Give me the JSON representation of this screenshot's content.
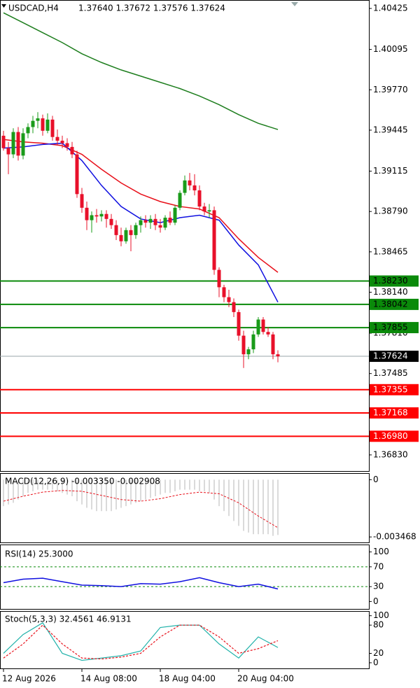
{
  "chart_data": [
    {
      "type": "candlestick",
      "title": "USDCAD,H4",
      "subtitle": "1.37640 1.37672 1.37576 1.37624",
      "categories": [
        "12 Aug 2026",
        null,
        null,
        null,
        null,
        null,
        null,
        null,
        null,
        null,
        null,
        null,
        null,
        null,
        null,
        null,
        "14 Aug 08:00",
        null,
        null,
        null,
        null,
        null,
        null,
        null,
        null,
        null,
        null,
        null,
        null,
        null,
        null,
        null,
        "18 Aug 04:00",
        null,
        null,
        null,
        null,
        null,
        null,
        null,
        null,
        null,
        null,
        null,
        null,
        null,
        null,
        null,
        "20 Aug 04:00",
        null,
        null,
        null,
        null,
        null,
        null,
        null,
        null
      ],
      "open": [
        1.394,
        1.393,
        1.3925,
        1.3943,
        1.3924,
        1.3942,
        1.3947,
        1.3952,
        1.3954,
        1.3944,
        1.3953,
        1.3939,
        1.3936,
        1.3934,
        1.3931,
        1.3925,
        1.3893,
        1.3882,
        1.3872,
        1.3876,
        1.3875,
        1.3877,
        1.3873,
        1.3868,
        1.386,
        1.3855,
        1.3864,
        1.386,
        1.3868,
        1.3872,
        1.387,
        1.3873,
        1.3868,
        1.3866,
        1.3874,
        1.387,
        1.3882,
        1.3894,
        1.3904,
        1.39,
        1.3896,
        1.3883,
        1.3879,
        1.388,
        1.3832,
        1.3818,
        1.381,
        1.3806,
        1.3798,
        1.3779,
        1.3764,
        1.3768,
        1.378,
        1.3792,
        1.3782,
        1.378,
        1.3764
      ],
      "high": [
        1.3944,
        1.3935,
        1.3946,
        1.3947,
        1.3946,
        1.395,
        1.3956,
        1.3959,
        1.3957,
        1.3958,
        1.3956,
        1.3945,
        1.394,
        1.3938,
        1.3935,
        1.3928,
        1.3898,
        1.3887,
        1.3879,
        1.3881,
        1.388,
        1.388,
        1.3877,
        1.3872,
        1.3866,
        1.3866,
        1.3868,
        1.387,
        1.3875,
        1.3876,
        1.3876,
        1.3877,
        1.3873,
        1.3876,
        1.3879,
        1.3884,
        1.3896,
        1.3908,
        1.391,
        1.3909,
        1.39,
        1.3886,
        1.3885,
        1.3883,
        1.3834,
        1.382,
        1.3816,
        1.3809,
        1.38,
        1.3783,
        1.377,
        1.3783,
        1.3794,
        1.3794,
        1.3786,
        1.3782,
        1.37672
      ],
      "low": [
        1.3928,
        1.3909,
        1.3922,
        1.392,
        1.3921,
        1.3938,
        1.3942,
        1.3946,
        1.394,
        1.3942,
        1.3936,
        1.3933,
        1.393,
        1.3928,
        1.3922,
        1.389,
        1.3878,
        1.3864,
        1.3862,
        1.387,
        1.3871,
        1.3866,
        1.3865,
        1.3856,
        1.3851,
        1.3853,
        1.3847,
        1.3857,
        1.3862,
        1.3866,
        1.3865,
        1.3864,
        1.3862,
        1.3864,
        1.3868,
        1.3868,
        1.388,
        1.3892,
        1.3896,
        1.3892,
        1.388,
        1.3876,
        1.3874,
        1.3828,
        1.381,
        1.3806,
        1.3802,
        1.3794,
        1.3775,
        1.3753,
        1.376,
        1.3765,
        1.3778,
        1.378,
        1.3778,
        1.376,
        1.37576
      ],
      "close": [
        1.393,
        1.3925,
        1.3943,
        1.3924,
        1.3942,
        1.3947,
        1.3952,
        1.3954,
        1.3944,
        1.3953,
        1.3939,
        1.3936,
        1.3934,
        1.3931,
        1.3925,
        1.3893,
        1.3882,
        1.3872,
        1.3876,
        1.3875,
        1.3877,
        1.3873,
        1.3868,
        1.386,
        1.3855,
        1.3864,
        1.386,
        1.3868,
        1.3872,
        1.387,
        1.3873,
        1.3868,
        1.3866,
        1.3874,
        1.387,
        1.3882,
        1.3894,
        1.3904,
        1.39,
        1.3896,
        1.3883,
        1.3879,
        1.388,
        1.3832,
        1.3818,
        1.381,
        1.3806,
        1.3798,
        1.3779,
        1.3764,
        1.3768,
        1.378,
        1.3792,
        1.3782,
        1.378,
        1.3764,
        1.37624
      ],
      "up_color": "#1a9b1a",
      "down_color": "#e8102a",
      "lines": [
        {
          "color": "#1e7e1e",
          "x": [
            0,
            4,
            8,
            12,
            16,
            20,
            24,
            28,
            32,
            36,
            40,
            44,
            48,
            52,
            56
          ],
          "values": [
            1.4039,
            1.4031,
            1.4023,
            1.4015,
            1.4006,
            1.3999,
            1.3993,
            1.3988,
            1.3983,
            1.3978,
            1.3972,
            1.3965,
            1.3957,
            1.395,
            1.3945
          ]
        },
        {
          "color": "#e8101a",
          "x": [
            0,
            4,
            8,
            12,
            16,
            20,
            24,
            28,
            32,
            36,
            40,
            44,
            48,
            52,
            56
          ],
          "values": [
            1.3937,
            1.3935,
            1.3934,
            1.3932,
            1.3925,
            1.3913,
            1.3902,
            1.3893,
            1.3887,
            1.3883,
            1.3881,
            1.3874,
            1.3857,
            1.3842,
            1.383
          ]
        },
        {
          "color": "#1010e0",
          "x": [
            0,
            4,
            8,
            12,
            16,
            20,
            24,
            28,
            32,
            36,
            40,
            44,
            48,
            52,
            56
          ],
          "values": [
            1.393,
            1.3931,
            1.3933,
            1.3934,
            1.392,
            1.39,
            1.3883,
            1.3873,
            1.387,
            1.3874,
            1.3876,
            1.3872,
            1.3852,
            1.3836,
            1.3806
          ]
        }
      ],
      "levels": [
        {
          "value": 1.3823,
          "label": "1.38230",
          "color": "#0a8a0a"
        },
        {
          "value": 1.38042,
          "color": "#0a8a0a"
        },
        {
          "value": 1.37855,
          "color": "#0a8a0a"
        },
        {
          "value": 1.37355,
          "color": "#ff0000"
        },
        {
          "value": 1.37168,
          "color": "#ff0000"
        },
        {
          "value": 1.3698,
          "label": "1.36980",
          "color": "#ff0000"
        }
      ],
      "bid": 1.37624,
      "ylim": [
        1.367,
        1.40493
      ],
      "yticks": [
        1.40425,
        1.40095,
        {
          "value": 1.3977,
          "label": "1.39770"
        },
        1.39445,
        1.39115,
        {
          "value": 1.3879,
          "label": "1.38790"
        },
        1.38465,
        {
          "value": 1.3814,
          "label": "1.38140"
        },
        {
          "value": 1.3781,
          "label": "1.37810"
        },
        1.37485,
        {
          "value": 1.3683,
          "label": "1.36830"
        }
      ]
    },
    {
      "type": "macd",
      "title": "MACD(12,26,9) -0.003350 -0.002908",
      "values": [
        -0.0016,
        -0.0015,
        -0.0014,
        -0.0012,
        -0.001,
        -0.0008,
        -0.0007,
        -0.0006,
        -0.0006,
        -0.0006,
        -0.0006,
        -0.0007,
        -0.0008,
        -0.0009,
        -0.001,
        -0.0013,
        -0.0015,
        -0.0017,
        -0.0018,
        -0.0019,
        -0.0019,
        -0.0019,
        -0.0019,
        -0.0018,
        -0.0017,
        -0.0016,
        -0.0015,
        -0.0014,
        -0.0013,
        -0.0012,
        -0.0011,
        -0.001,
        -0.0009,
        -0.0008,
        -0.0008,
        -0.0007,
        -0.0006,
        -0.0006,
        -0.0006,
        -0.0006,
        -0.0007,
        -0.0007,
        -0.0008,
        -0.0012,
        -0.0016,
        -0.0019,
        -0.0022,
        -0.0025,
        -0.0028,
        -0.0031,
        -0.0032,
        -0.0033,
        -0.0033,
        -0.0033,
        -0.0033,
        -0.0034,
        -0.00335
      ],
      "color": "#b4b4b4",
      "signal": {
        "color": "#e8101a",
        "x": [
          0,
          4,
          8,
          12,
          16,
          20,
          24,
          28,
          32,
          36,
          40,
          44,
          48,
          52,
          56
        ],
        "values": [
          -0.0013,
          -0.001,
          -0.00075,
          -0.00065,
          -0.0007,
          -0.00095,
          -0.0012,
          -0.0013,
          -0.00115,
          -0.0009,
          -0.00075,
          -0.00085,
          -0.0014,
          -0.0022,
          -0.002908
        ]
      },
      "ylim": [
        -0.0038,
        0.0004
      ],
      "yticks": [
        0,
        -0.003468
      ]
    },
    {
      "type": "line",
      "title": "RSI(14) 25.3000",
      "color": "#1010e0",
      "x": [
        0,
        4,
        8,
        12,
        16,
        20,
        24,
        28,
        32,
        36,
        40,
        44,
        48,
        52,
        56
      ],
      "values": [
        38,
        45,
        47,
        40,
        33,
        32,
        30,
        36,
        35,
        40,
        48,
        38,
        30,
        35,
        25.3
      ],
      "levels": [
        70,
        30
      ],
      "level_color": "#0a8a0a",
      "ylim": [
        -15,
        115
      ],
      "yticks": [
        100,
        70,
        30,
        0
      ]
    },
    {
      "type": "stoch",
      "title": "Stoch(5,3,3) 32.4561 46.9131",
      "x": [
        0,
        4,
        8,
        12,
        16,
        20,
        24,
        28,
        32,
        36,
        40,
        44,
        48,
        52,
        56
      ],
      "series": [
        {
          "color": "#20b2aa",
          "values": [
            20,
            60,
            85,
            20,
            5,
            10,
            15,
            25,
            75,
            80,
            80,
            40,
            10,
            55,
            32.4561
          ]
        },
        {
          "color": "#e8101a",
          "values": [
            10,
            40,
            80,
            40,
            10,
            8,
            12,
            20,
            55,
            80,
            80,
            55,
            20,
            30,
            46.9131
          ]
        }
      ],
      "ylim": [
        -12,
        110
      ],
      "yticks": [
        100,
        80,
        20,
        0
      ]
    }
  ]
}
